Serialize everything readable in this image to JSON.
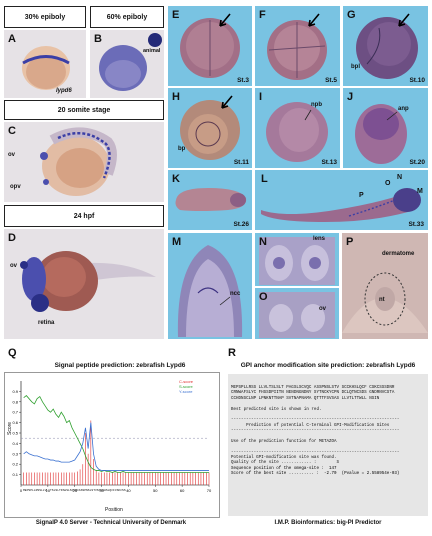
{
  "headers": {
    "epiboly30": "30% epiboly",
    "epiboly60": "60% epiboly",
    "somite20": "20 somite stage",
    "hpf24": "24 hpf"
  },
  "panels": {
    "A": {
      "letter": "A",
      "label": "lypd6"
    },
    "B": {
      "letter": "B",
      "label": "animal"
    },
    "C": {
      "letter": "C",
      "ov": "ov",
      "opv": "opv"
    },
    "D": {
      "letter": "D",
      "ov": "ov",
      "retina": "retina"
    },
    "E": {
      "letter": "E",
      "stage": "St.3"
    },
    "F": {
      "letter": "F",
      "stage": "St.5"
    },
    "G": {
      "letter": "G",
      "stage": "St.10",
      "bpl": "bpl"
    },
    "H": {
      "letter": "H",
      "stage": "St.11",
      "bp": "bp"
    },
    "I": {
      "letter": "I",
      "stage": "St.13",
      "npb": "npb"
    },
    "J": {
      "letter": "J",
      "stage": "St.20",
      "anp": "anp"
    },
    "K": {
      "letter": "K",
      "stage": "St.26"
    },
    "L": {
      "letter": "L",
      "stage": "St.33",
      "P": "P",
      "O": "O",
      "N": "N",
      "M": "M"
    },
    "M": {
      "letter": "M",
      "ncc": "ncc"
    },
    "N": {
      "letter": "N",
      "lens": "lens"
    },
    "O": {
      "letter": "O",
      "ov": "ov"
    },
    "P": {
      "letter": "P",
      "dermatome": "dermatome",
      "nt": "nt"
    }
  },
  "Q": {
    "letter": "Q",
    "title": "Signal peptide prediction: zebrafish Lypd6",
    "caption": "SignalP 4.0 Server - Technical University of Denmark",
    "legend": [
      "C-score",
      "S-score",
      "Y-score"
    ],
    "sequence": "MEPSPLLRSSLLVL TSLSLTPAGSLSCVQCASSPNSLSTVSCCKHSLQCFCSKCSS",
    "chart_data": {
      "type": "line",
      "ylabel": "Score",
      "xlabel": "Position",
      "xlim": [
        0,
        70
      ],
      "ylim": [
        0,
        1.0
      ],
      "x_ticks": [
        0,
        10,
        20,
        30,
        40,
        50,
        60,
        70
      ],
      "y_ticks": [
        0.1,
        0.2,
        0.3,
        0.4,
        0.5,
        0.6,
        0.7,
        0.8,
        0.9
      ],
      "series": [
        {
          "name": "C-score",
          "color": "#e03030",
          "x": [
            1,
            2,
            3,
            4,
            5,
            6,
            7,
            8,
            9,
            10,
            11,
            12,
            13,
            14,
            15,
            16,
            17,
            18,
            19,
            20,
            21,
            22,
            23,
            24,
            25,
            26,
            27,
            28,
            29,
            30,
            31,
            32,
            33,
            34,
            35,
            36,
            37,
            38,
            39,
            40,
            41,
            42,
            43,
            44,
            45,
            46,
            47,
            48,
            49,
            50,
            51,
            52,
            53,
            54,
            55,
            56,
            57,
            58,
            59,
            60,
            61,
            62,
            63,
            64,
            65,
            66,
            67,
            68,
            69,
            70
          ],
          "y": [
            0.12,
            0.12,
            0.12,
            0.12,
            0.12,
            0.12,
            0.12,
            0.12,
            0.12,
            0.12,
            0.12,
            0.12,
            0.12,
            0.12,
            0.12,
            0.12,
            0.12,
            0.12,
            0.12,
            0.12,
            0.13,
            0.15,
            0.2,
            0.5,
            0.3,
            0.62,
            0.25,
            0.14,
            0.12,
            0.12,
            0.12,
            0.12,
            0.12,
            0.12,
            0.12,
            0.12,
            0.12,
            0.12,
            0.12,
            0.12,
            0.12,
            0.12,
            0.12,
            0.12,
            0.12,
            0.12,
            0.12,
            0.12,
            0.12,
            0.12,
            0.12,
            0.12,
            0.12,
            0.12,
            0.12,
            0.12,
            0.12,
            0.12,
            0.12,
            0.12,
            0.12,
            0.12,
            0.12,
            0.12,
            0.12,
            0.12,
            0.12,
            0.12,
            0.12,
            0.12
          ]
        },
        {
          "name": "S-score",
          "color": "#2fa02f",
          "x": [
            1,
            2,
            3,
            4,
            5,
            6,
            7,
            8,
            9,
            10,
            11,
            12,
            13,
            14,
            15,
            16,
            17,
            18,
            19,
            20,
            21,
            22,
            23,
            24,
            25,
            26,
            27,
            28,
            29,
            30,
            31,
            32,
            33,
            34,
            35,
            36,
            37,
            38,
            39,
            40,
            41,
            42,
            43,
            44,
            45,
            46,
            47,
            48,
            49,
            50,
            51,
            52,
            53,
            54,
            55,
            56,
            57,
            58,
            59,
            60,
            61,
            62,
            63,
            64,
            65,
            66,
            67,
            68,
            69,
            70
          ],
          "y": [
            0.84,
            0.86,
            0.83,
            0.8,
            0.78,
            0.83,
            0.85,
            0.8,
            0.76,
            0.72,
            0.7,
            0.73,
            0.68,
            0.65,
            0.7,
            0.66,
            0.6,
            0.62,
            0.55,
            0.5,
            0.45,
            0.4,
            0.35,
            0.28,
            0.22,
            0.17,
            0.15,
            0.14,
            0.14,
            0.13,
            0.14,
            0.13,
            0.13,
            0.12,
            0.13,
            0.12,
            0.12,
            0.13,
            0.12,
            0.12,
            0.12,
            0.12,
            0.12,
            0.12,
            0.12,
            0.12,
            0.12,
            0.12,
            0.12,
            0.12,
            0.12,
            0.12,
            0.12,
            0.12,
            0.12,
            0.12,
            0.12,
            0.12,
            0.12,
            0.12,
            0.12,
            0.12,
            0.12,
            0.12,
            0.12,
            0.12,
            0.12,
            0.12,
            0.12,
            0.12
          ]
        },
        {
          "name": "Y-score",
          "color": "#3a70d0",
          "x": [
            1,
            2,
            3,
            4,
            5,
            6,
            7,
            8,
            9,
            10,
            11,
            12,
            13,
            14,
            15,
            16,
            17,
            18,
            19,
            20,
            21,
            22,
            23,
            24,
            25,
            26,
            27,
            28,
            29,
            30,
            31,
            32,
            33,
            34,
            35,
            36,
            37,
            38,
            39,
            40,
            41,
            42,
            43,
            44,
            45,
            46,
            47,
            48,
            49,
            50,
            51,
            52,
            53,
            54,
            55,
            56,
            57,
            58,
            59,
            60,
            61,
            62,
            63,
            64,
            65,
            66,
            67,
            68,
            69,
            70
          ],
          "y": [
            0.3,
            0.32,
            0.3,
            0.29,
            0.28,
            0.28,
            0.27,
            0.26,
            0.25,
            0.25,
            0.24,
            0.24,
            0.23,
            0.23,
            0.22,
            0.22,
            0.22,
            0.22,
            0.23,
            0.24,
            0.28,
            0.32,
            0.4,
            0.55,
            0.35,
            0.6,
            0.3,
            0.18,
            0.15,
            0.14,
            0.14,
            0.14,
            0.14,
            0.14,
            0.14,
            0.14,
            0.14,
            0.14,
            0.14,
            0.14,
            0.14,
            0.14,
            0.14,
            0.14,
            0.14,
            0.14,
            0.14,
            0.14,
            0.14,
            0.14,
            0.14,
            0.14,
            0.14,
            0.14,
            0.14,
            0.14,
            0.14,
            0.14,
            0.14,
            0.14,
            0.14,
            0.14,
            0.14,
            0.14,
            0.14,
            0.14,
            0.14,
            0.14,
            0.14,
            0.14
          ]
        }
      ],
      "threshold": 0.45
    }
  },
  "R": {
    "letter": "R",
    "title": "GPI anchor modification site prediction: zebrafish Lypd6",
    "caption": "I.M.P. Bioinformatics: big-PI Predictor",
    "lines": [
      "MEPSPLLRSS LLVLTSLSLT PAGSLSCVQC ASSPNSLSTV SCCKHSLQCF CSKCSSSDNR",
      "CRNWAFSLYC FHSSDPIITN NENDNGNDNY SYTNCKYCPN DCLQTNCSDS GNDRNVCSTA",
      "CCHDNSCLNP LPNKNTTNAP SVTNAPNAMA QTTTFSVSAS LLVTLTTWLL NSIN",
      "",
      "Best predicted site is shown in red.",
      "",
      "-------------------------------------------------------------------",
      "      Prediction of potential C-terminal GPI-Modification Sites",
      "-------------------------------------------------------------------",
      "",
      "Use of the prediction function for METAZOA",
      "",
      "-------------------------------------------------------------------",
      "Potential GPI-modification site was found.",
      "Quality of the site ............ :        S",
      "Sequence position of the omega-site :  147",
      "Score of the best site .......... :  -2.70  (Pvalue = 2.558954e-03)"
    ]
  }
}
